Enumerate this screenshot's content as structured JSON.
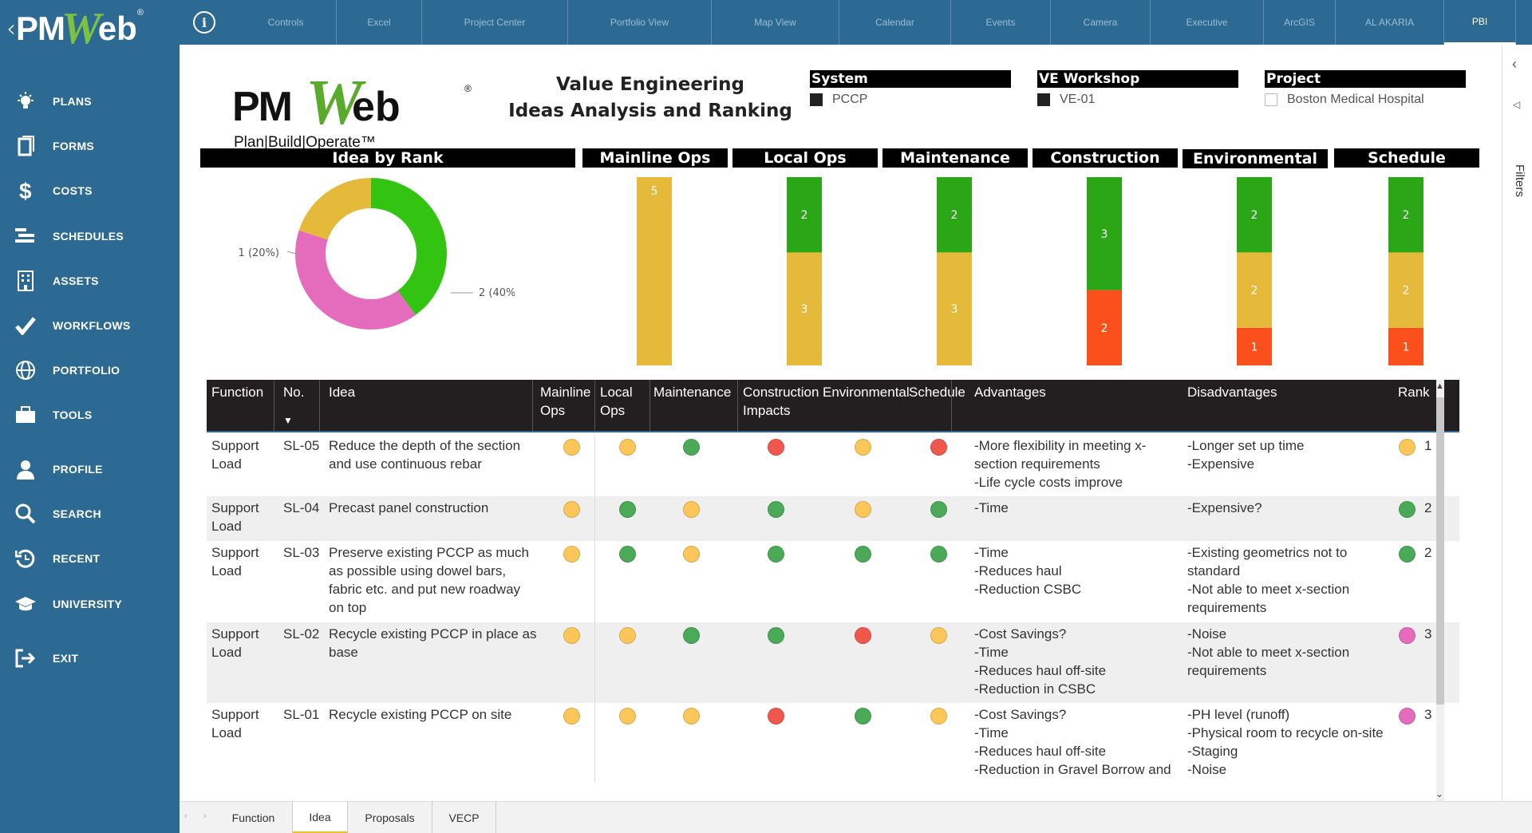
{
  "sidebar": {
    "logo": {
      "p1": "PM",
      "p2": "W",
      "p3": "eb",
      "reg": "®"
    },
    "items": [
      {
        "label": "PLANS",
        "icon": "bulb-icon"
      },
      {
        "label": "FORMS",
        "icon": "forms-icon"
      },
      {
        "label": "COSTS",
        "icon": "dollar-icon"
      },
      {
        "label": "SCHEDULES",
        "icon": "schedule-icon"
      },
      {
        "label": "ASSETS",
        "icon": "building-icon"
      },
      {
        "label": "WORKFLOWS",
        "icon": "check-icon"
      },
      {
        "label": "PORTFOLIO",
        "icon": "globe-icon"
      },
      {
        "label": "TOOLS",
        "icon": "toolbox-icon"
      },
      {
        "label": "PROFILE",
        "icon": "user-icon"
      },
      {
        "label": "SEARCH",
        "icon": "search-icon"
      },
      {
        "label": "RECENT",
        "icon": "recent-icon"
      },
      {
        "label": "UNIVERSITY",
        "icon": "graduation-icon"
      },
      {
        "label": "EXIT",
        "icon": "exit-icon"
      }
    ]
  },
  "topbar": {
    "info": "i",
    "tabs": [
      "Controls",
      "Excel",
      "Project Center",
      "Portfolio View",
      "Map View",
      "Calendar",
      "Events",
      "Camera",
      "Executive",
      "ArcGIS",
      "AL AKARIA",
      "PBI"
    ],
    "active_tab": "PBI"
  },
  "report": {
    "logo": {
      "p1": "PM",
      "p2": "W",
      "p3": "eb",
      "reg": "®",
      "tagline": "Plan|Build|Operate™"
    },
    "title_line1": "Value Engineering",
    "title_line2": "Ideas Analysis and Ranking",
    "slicers": [
      {
        "header": "System",
        "value": "PCCP",
        "checked": true
      },
      {
        "header": "VE Workshop",
        "value": "VE-01",
        "checked": true
      },
      {
        "header": "Project",
        "value": "Boston Medical Hospital",
        "checked": false
      }
    ]
  },
  "chart_data": [
    {
      "type": "pie",
      "title": "Idea by Rank",
      "donut": true,
      "slices": [
        {
          "label": "1 (20%)",
          "value": 1,
          "percent": 20,
          "color": "#e5b93a"
        },
        {
          "label": "2 (40%)",
          "value": 2,
          "percent": 40,
          "color": "#33c411"
        },
        {
          "label": "2 (40%)",
          "value": 2,
          "percent": 40,
          "color": "#e56bbd"
        }
      ]
    },
    {
      "type": "bar",
      "stacked": true,
      "title": "Mainline Ops",
      "segments": [
        {
          "value": 5,
          "color": "#e5b93a"
        }
      ]
    },
    {
      "type": "bar",
      "stacked": true,
      "title": "Local Ops",
      "segments": [
        {
          "value": 3,
          "color": "#e5b93a"
        },
        {
          "value": 2,
          "color": "#2aa616"
        }
      ]
    },
    {
      "type": "bar",
      "stacked": true,
      "title": "Maintenance",
      "segments": [
        {
          "value": 3,
          "color": "#e5b93a"
        },
        {
          "value": 2,
          "color": "#2aa616"
        }
      ]
    },
    {
      "type": "bar",
      "stacked": true,
      "title": "Construction",
      "segments": [
        {
          "value": 2,
          "color": "#fb4f1c"
        },
        {
          "value": 3,
          "color": "#2aa616"
        }
      ]
    },
    {
      "type": "bar",
      "stacked": true,
      "title": "Environmental",
      "segments": [
        {
          "value": 1,
          "color": "#fb4f1c"
        },
        {
          "value": 2,
          "color": "#e5b93a"
        },
        {
          "value": 2,
          "color": "#2aa616"
        }
      ]
    },
    {
      "type": "bar",
      "stacked": true,
      "title": "Schedule",
      "segments": [
        {
          "value": 1,
          "color": "#fb4f1c"
        },
        {
          "value": 2,
          "color": "#e5b93a"
        },
        {
          "value": 2,
          "color": "#2aa616"
        }
      ]
    }
  ],
  "table": {
    "headers": [
      "Function",
      "No.",
      "Idea",
      "Mainline Ops",
      "Local Ops",
      "Maintenance",
      "Construction Impacts",
      "Environmental",
      "Schedule",
      "Advantages",
      "Disadvantages",
      "Rank"
    ],
    "sort_icon": "sort-down-icon",
    "status_colors": {
      "yellow": "#fcc659",
      "green": "#4aaa58",
      "red": "#f0584e",
      "pink": "#e56bbd"
    },
    "rows": [
      {
        "function": "Support Load",
        "no": "SL-05",
        "idea": "Reduce the depth of the section and use continuous rebar",
        "statuses": [
          "yellow",
          "yellow",
          "green",
          "red",
          "yellow",
          "red"
        ],
        "advantages": "-More flexibility in meeting x-section requirements\n-Life cycle costs improve",
        "disadvantages": "-Longer set up time\n-Expensive",
        "rank_color": "yellow",
        "rank": "1"
      },
      {
        "function": "Support Load",
        "no": "SL-04",
        "idea": "Precast panel construction",
        "statuses": [
          "yellow",
          "green",
          "yellow",
          "green",
          "yellow",
          "green"
        ],
        "advantages": "-Time",
        "disadvantages": "-Expensive?",
        "rank_color": "green",
        "rank": "2"
      },
      {
        "function": "Support Load",
        "no": "SL-03",
        "idea": "Preserve existing PCCP as much as possible using dowel bars, fabric etc. and put new roadway on top",
        "statuses": [
          "yellow",
          "green",
          "yellow",
          "green",
          "green",
          "green"
        ],
        "advantages": "-Time\n-Reduces haul\n-Reduction CSBC",
        "disadvantages": "-Existing geometrics not to standard\n-Not able to meet x-section requirements",
        "rank_color": "green",
        "rank": "2"
      },
      {
        "function": "Support Load",
        "no": "SL-02",
        "idea": "Recycle existing PCCP in place as base",
        "statuses": [
          "yellow",
          "yellow",
          "green",
          "green",
          "red",
          "yellow"
        ],
        "advantages": "-Cost Savings?\n-Time\n-Reduces haul off-site\n-Reduction in CSBC",
        "disadvantages": "-Noise\n-Not able to meet x-section requirements",
        "rank_color": "pink",
        "rank": "3"
      },
      {
        "function": "Support Load",
        "no": "SL-01",
        "idea": "Recycle existing PCCP on site",
        "statuses": [
          "yellow",
          "yellow",
          "yellow",
          "red",
          "green",
          "yellow"
        ],
        "advantages": "-Cost Savings?\n-Time\n-Reduces haul off-site\n-Reduction in Gravel Borrow and",
        "disadvantages": "-PH level (runoff)\n-Physical room to recycle on-site\n-Staging\n-Noise",
        "rank_color": "pink",
        "rank": "3"
      }
    ]
  },
  "filters": {
    "label": "Filters"
  },
  "pages": {
    "tabs": [
      "Function",
      "Idea",
      "Proposals",
      "VECP"
    ],
    "active": "Idea"
  }
}
